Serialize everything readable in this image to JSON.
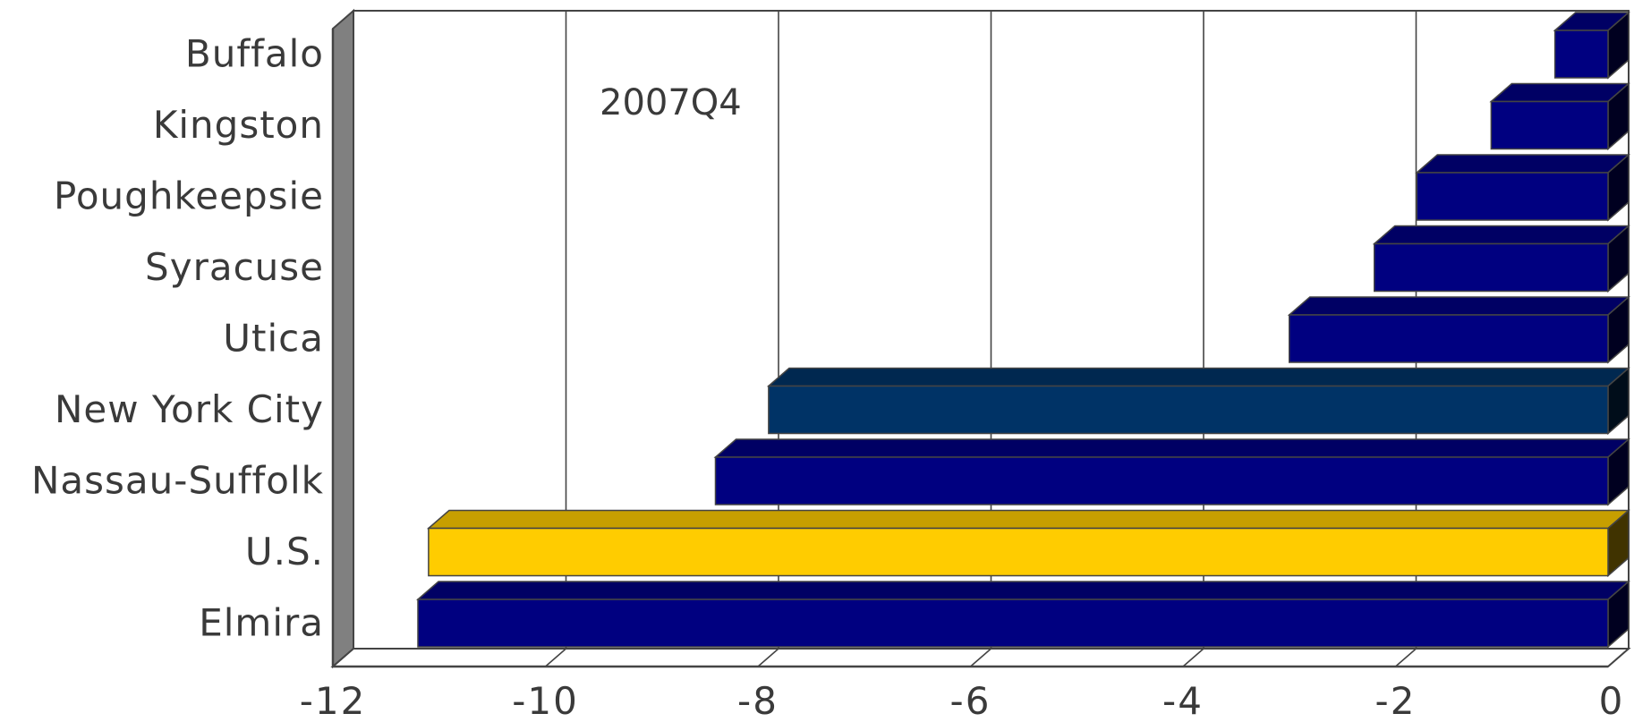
{
  "chart_data": {
    "type": "bar",
    "orientation": "horizontal",
    "style": "3d",
    "annotation": "2007Q4",
    "categories": [
      "Buffalo",
      "Kingston",
      "Poughkeepsie",
      "Syracuse",
      "Utica",
      "New York City",
      "Nassau-Suffolk",
      "U.S.",
      "Elmira"
    ],
    "values": [
      -0.5,
      -1.1,
      -1.8,
      -2.2,
      -3.0,
      -7.9,
      -8.4,
      -11.1,
      -11.2
    ],
    "bar_colors": [
      "#000080",
      "#000080",
      "#000080",
      "#000080",
      "#000080",
      "#003366",
      "#000080",
      "#FFCC00",
      "#000080"
    ],
    "xlim": [
      -12,
      0
    ],
    "xticks": [
      -12,
      -10,
      -8,
      -6,
      -4,
      -2,
      0
    ],
    "xtick_labels": [
      "-12",
      "-10",
      "-8",
      "-6",
      "-4",
      "-2",
      "0"
    ],
    "grid": true,
    "legend": "none"
  }
}
